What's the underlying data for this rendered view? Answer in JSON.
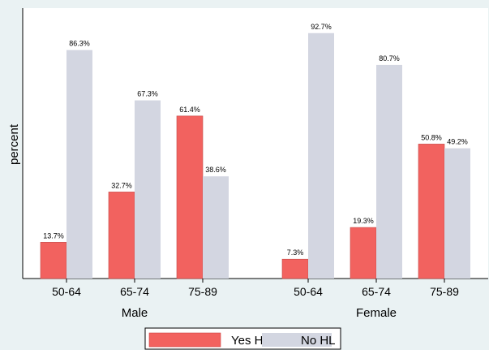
{
  "chart_data": {
    "type": "bar",
    "ylabel": "percent",
    "ylim": [
      0,
      100
    ],
    "grid": false,
    "legend_position": "bottom",
    "groups": [
      {
        "name": "Male",
        "categories": [
          "50-64",
          "65-74",
          "75-89"
        ],
        "series": [
          {
            "name": "Yes HL",
            "values": [
              13.7,
              32.7,
              61.4
            ],
            "labels": [
              "13.7%",
              "32.7%",
              "61.4%"
            ]
          },
          {
            "name": "No HL",
            "values": [
              86.3,
              67.3,
              38.6
            ],
            "labels": [
              "86.3%",
              "67.3%",
              "38.6%"
            ]
          }
        ]
      },
      {
        "name": "Female",
        "categories": [
          "50-64",
          "65-74",
          "75-89"
        ],
        "series": [
          {
            "name": "Yes HL",
            "values": [
              7.3,
              19.3,
              50.8
            ],
            "labels": [
              "7.3%",
              "19.3%",
              "50.8%"
            ]
          },
          {
            "name": "No HL",
            "values": [
              92.7,
              80.7,
              49.2
            ],
            "labels": [
              "92.7%",
              "80.7%",
              "49.2%"
            ]
          }
        ]
      }
    ],
    "legend": [
      {
        "name": "Yes HL",
        "color": "#f2625f"
      },
      {
        "name": "No HL",
        "color": "#d3d6e1"
      }
    ],
    "colors": {
      "yes": "#f2625f",
      "no": "#d3d6e1",
      "background": "#eaf2f3",
      "plot_background": "#ffffff",
      "axis": "#000000"
    }
  }
}
